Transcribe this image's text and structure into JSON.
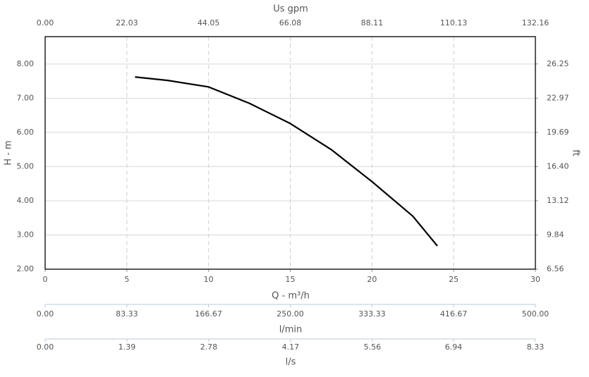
{
  "chart_data": {
    "type": "line",
    "x": [
      5.5,
      7.5,
      10,
      12.5,
      15,
      17.5,
      20,
      22.5,
      24
    ],
    "values": [
      7.62,
      7.52,
      7.33,
      6.85,
      6.26,
      5.5,
      4.56,
      3.55,
      2.68
    ],
    "color": "#000000",
    "xlabel": "Q - m³/h",
    "xlim": [
      0,
      30
    ],
    "xticks": [
      0,
      5,
      10,
      15,
      20,
      25,
      30
    ],
    "ylabel": "H - m",
    "ylim": [
      2,
      8.8
    ],
    "yticks": [
      {
        "value": 2,
        "label": "2.00"
      },
      {
        "value": 3,
        "label": "3.00"
      },
      {
        "value": 4,
        "label": "4.00"
      },
      {
        "value": 5,
        "label": "5.00"
      },
      {
        "value": 6,
        "label": "6.00"
      },
      {
        "value": 7,
        "label": "7.00"
      },
      {
        "value": 8,
        "label": "8.00"
      }
    ],
    "y2label": "ft",
    "y2lim": [
      6.56,
      28.87
    ],
    "y2ticks": [
      6.56,
      9.84,
      13.12,
      {
        "value": 16.4,
        "label": "16.40"
      },
      19.69,
      22.97,
      26.25
    ],
    "top_axis": {
      "label": "Us gpm",
      "lim": [
        0,
        132.16
      ],
      "ticks": [
        {
          "value": 0,
          "label": "0.00"
        },
        22.03,
        44.05,
        66.08,
        88.11,
        110.13,
        132.16
      ]
    },
    "extra_axes": [
      {
        "label": "l/min",
        "lim": [
          0,
          500
        ],
        "ticks": [
          {
            "value": 0,
            "label": "0.00"
          },
          83.33,
          166.67,
          {
            "value": 250,
            "label": "250.00"
          },
          333.33,
          416.67,
          {
            "value": 500,
            "label": "500.00"
          }
        ]
      },
      {
        "label": "l/s",
        "lim": [
          0,
          8.33
        ],
        "ticks": [
          {
            "value": 0,
            "label": "0.00"
          },
          1.39,
          2.78,
          4.17,
          5.56,
          6.94,
          8.33
        ]
      }
    ],
    "grid": true
  }
}
